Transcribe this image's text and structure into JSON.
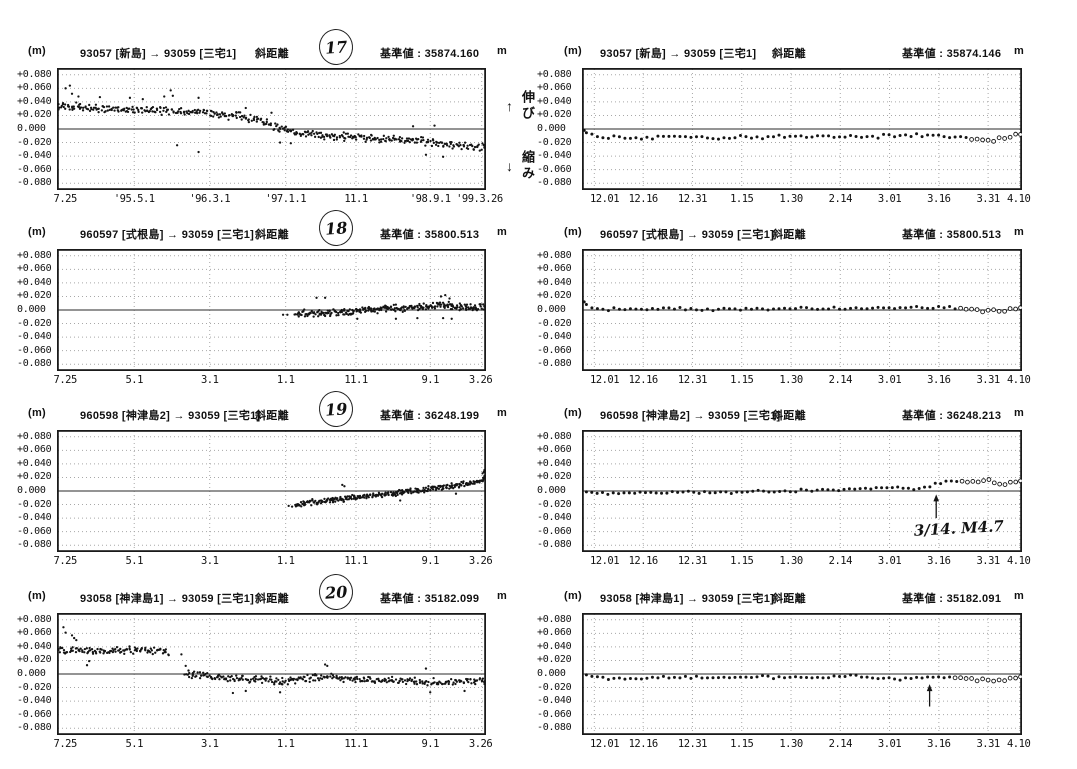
{
  "page": {
    "bg": "#ffffff",
    "ink": "#141414",
    "grid": "#a8a8a8",
    "zero_line": "#555555"
  },
  "side_labels": {
    "up_arrow": "↑",
    "extend": "伸び",
    "down_arrow": "↓",
    "contract": "縮み"
  },
  "axes": {
    "y": {
      "ticks": [
        [
          "+0.080",
          0.08
        ],
        [
          "+0.060",
          0.06
        ],
        [
          "+0.040",
          0.04
        ],
        [
          "+0.020",
          0.02
        ],
        [
          "0.000",
          0.0
        ],
        [
          "-0.020",
          -0.02
        ],
        [
          "-0.040",
          -0.04
        ],
        [
          "-0.060",
          -0.06
        ],
        [
          "-0.080",
          -0.08
        ]
      ],
      "range": [
        -0.09,
        0.09
      ],
      "unit": "(m)"
    },
    "x": {
      "long1": {
        "labels": [
          "7.25",
          "'95.5.1",
          "'96.3.1",
          "'97.1.1",
          "11.1",
          "'98.9.1",
          "'99.3.26"
        ],
        "fracs": [
          0,
          0.18,
          0.356,
          0.533,
          0.697,
          0.87,
          0.99
        ]
      },
      "long": {
        "labels": [
          "7.25",
          "5.1",
          "3.1",
          "1.1",
          "11.1",
          "9.1",
          "3.26"
        ],
        "fracs": [
          0,
          0.18,
          0.356,
          0.533,
          0.697,
          0.87,
          0.99
        ]
      },
      "short": {
        "labels": [
          "12.01",
          "12.16",
          "12.31",
          "1.15",
          "1.30",
          "2.14",
          "3.01",
          "3.16",
          "3.31",
          "4.10"
        ],
        "fracs": [
          0.028,
          0.139,
          0.251,
          0.363,
          0.475,
          0.587,
          0.699,
          0.811,
          0.923,
          0.995
        ]
      }
    }
  },
  "chart_data": [
    {
      "type": "scatter",
      "id": "17-long",
      "title": {
        "unit": "(m)",
        "stations": "93057 [新島] → 93059 [三宅1]",
        "measure": "斜距離",
        "badge": "17",
        "ref_label": "基準値 :",
        "ref_value": "35874.160",
        "ref_unit": "m"
      },
      "xaxis": "long1",
      "ylim": [
        -0.09,
        0.09
      ],
      "even": false,
      "n": 430,
      "seed": 3,
      "noise": 0.007,
      "dot_r": 1.15,
      "x0": 0,
      "open_from": null,
      "gaps": [],
      "trend": [
        [
          0,
          0.034
        ],
        [
          0.04,
          0.033
        ],
        [
          0.1,
          0.031
        ],
        [
          0.16,
          0.029
        ],
        [
          0.22,
          0.028
        ],
        [
          0.28,
          0.026
        ],
        [
          0.33,
          0.024
        ],
        [
          0.38,
          0.021
        ],
        [
          0.43,
          0.019
        ],
        [
          0.47,
          0.013
        ],
        [
          0.5,
          0.006
        ],
        [
          0.53,
          -0.001
        ],
        [
          0.56,
          -0.006
        ],
        [
          0.62,
          -0.009
        ],
        [
          0.68,
          -0.012
        ],
        [
          0.74,
          -0.014
        ],
        [
          0.8,
          -0.016
        ],
        [
          0.86,
          -0.018
        ],
        [
          0.9,
          -0.021
        ],
        [
          0.94,
          -0.025
        ],
        [
          1,
          -0.027
        ]
      ],
      "outliers": [
        [
          0.02,
          0.06
        ],
        [
          0.03,
          0.064
        ],
        [
          0.035,
          0.052
        ],
        [
          0.05,
          0.048
        ],
        [
          0.1,
          0.047
        ],
        [
          0.17,
          0.046
        ],
        [
          0.2,
          0.044
        ],
        [
          0.25,
          0.048
        ],
        [
          0.265,
          0.057
        ],
        [
          0.27,
          0.049
        ],
        [
          0.33,
          0.046
        ],
        [
          0.28,
          -0.024
        ],
        [
          0.33,
          -0.034
        ],
        [
          0.44,
          0.031
        ],
        [
          0.5,
          0.024
        ],
        [
          0.52,
          -0.02
        ],
        [
          0.545,
          -0.021
        ],
        [
          0.83,
          0.004
        ],
        [
          0.88,
          0.005
        ],
        [
          0.86,
          -0.038
        ],
        [
          0.9,
          -0.041
        ]
      ],
      "annotation": null
    },
    {
      "type": "scatter",
      "id": "17-short",
      "title": {
        "unit": "(m)",
        "stations": "93057 [新島] → 93059 [三宅1]",
        "measure": "斜距離",
        "badge": null,
        "ref_label": "基準値 :",
        "ref_value": "35874.146",
        "ref_unit": "m"
      },
      "xaxis": "short",
      "ylim": [
        -0.09,
        0.09
      ],
      "even": true,
      "n": 80,
      "seed": 7,
      "noise": 0.0035,
      "dot_r": 1.5,
      "x0": 0.01,
      "open_from": 0.88,
      "gaps": [],
      "trend": [
        [
          0,
          -0.003
        ],
        [
          0.02,
          -0.008
        ],
        [
          0.06,
          -0.012
        ],
        [
          0.15,
          -0.013
        ],
        [
          0.25,
          -0.012
        ],
        [
          0.35,
          -0.013
        ],
        [
          0.45,
          -0.012
        ],
        [
          0.55,
          -0.012
        ],
        [
          0.65,
          -0.011
        ],
        [
          0.72,
          -0.009
        ],
        [
          0.78,
          -0.008
        ],
        [
          0.82,
          -0.011
        ],
        [
          0.86,
          -0.01
        ],
        [
          0.9,
          -0.015
        ],
        [
          0.93,
          -0.017
        ],
        [
          0.96,
          -0.013
        ],
        [
          0.98,
          -0.01
        ],
        [
          1,
          -0.009
        ]
      ],
      "outliers": [
        [
          0.005,
          -0.002
        ]
      ],
      "annotation": null
    },
    {
      "type": "scatter",
      "id": "18-long",
      "title": {
        "unit": "(m)",
        "stations": "960597 [式根島] → 93059 [三宅1]",
        "measure": "斜距離",
        "badge": "18",
        "ref_label": "基準値 :",
        "ref_value": "35800.513",
        "ref_unit": "m"
      },
      "xaxis": "long",
      "ylim": [
        -0.09,
        0.09
      ],
      "even": false,
      "n": 280,
      "seed": 13,
      "noise": 0.006,
      "dot_r": 1.15,
      "x0": 0.555,
      "open_from": null,
      "gaps": [],
      "trend": [
        [
          0.555,
          -0.004
        ],
        [
          0.6,
          -0.005
        ],
        [
          0.65,
          -0.004
        ],
        [
          0.7,
          -0.002
        ],
        [
          0.75,
          0.001
        ],
        [
          0.8,
          0.003
        ],
        [
          0.85,
          0.004
        ],
        [
          0.88,
          0.006
        ],
        [
          0.91,
          0.007
        ],
        [
          0.93,
          0.004
        ],
        [
          0.96,
          0.003
        ],
        [
          1,
          0.004
        ]
      ],
      "outliers": [
        [
          0.527,
          -0.007
        ],
        [
          0.537,
          -0.007
        ],
        [
          0.605,
          0.018
        ],
        [
          0.625,
          0.018
        ],
        [
          0.7,
          -0.013
        ],
        [
          0.79,
          -0.013
        ],
        [
          0.84,
          -0.012
        ],
        [
          0.895,
          0.02
        ],
        [
          0.905,
          0.022
        ],
        [
          0.915,
          0.017
        ],
        [
          0.9,
          -0.012
        ],
        [
          0.92,
          -0.013
        ]
      ],
      "annotation": null
    },
    {
      "type": "scatter",
      "id": "18-short",
      "title": {
        "unit": "(m)",
        "stations": "960597 [式根島] → 93059 [三宅1]",
        "measure": "斜距離",
        "badge": null,
        "ref_label": "基準値 :",
        "ref_value": "35800.513",
        "ref_unit": "m"
      },
      "xaxis": "short",
      "ylim": [
        -0.09,
        0.09
      ],
      "even": true,
      "n": 80,
      "seed": 17,
      "noise": 0.003,
      "dot_r": 1.5,
      "x0": 0.01,
      "open_from": 0.86,
      "gaps": [],
      "trend": [
        [
          0,
          0.01
        ],
        [
          0.02,
          0.004
        ],
        [
          0.06,
          0.001
        ],
        [
          0.15,
          0.002
        ],
        [
          0.25,
          0.001
        ],
        [
          0.35,
          0.002
        ],
        [
          0.45,
          0.002
        ],
        [
          0.55,
          0.002
        ],
        [
          0.65,
          0.003
        ],
        [
          0.75,
          0.004
        ],
        [
          0.82,
          0.003
        ],
        [
          0.88,
          0.001
        ],
        [
          0.92,
          -0.002
        ],
        [
          0.96,
          -0.001
        ],
        [
          1,
          0.003
        ]
      ],
      "outliers": [
        [
          0.005,
          0.012
        ]
      ],
      "annotation": null
    },
    {
      "type": "scatter",
      "id": "19-long",
      "title": {
        "unit": "(m)",
        "stations": "960598 [神津島2] → 93059 [三宅1]",
        "measure": "斜距離",
        "badge": "19",
        "ref_label": "基準値 :",
        "ref_value": "36248.199",
        "ref_unit": "m"
      },
      "xaxis": "long",
      "ylim": [
        -0.09,
        0.09
      ],
      "even": false,
      "n": 300,
      "seed": 23,
      "noise": 0.005,
      "dot_r": 1.15,
      "x0": 0.555,
      "open_from": null,
      "gaps": [],
      "trend": [
        [
          0.555,
          -0.02
        ],
        [
          0.58,
          -0.018
        ],
        [
          0.62,
          -0.015
        ],
        [
          0.66,
          -0.012
        ],
        [
          0.7,
          -0.009
        ],
        [
          0.74,
          -0.007
        ],
        [
          0.78,
          -0.004
        ],
        [
          0.82,
          -0.001
        ],
        [
          0.86,
          0.002
        ],
        [
          0.9,
          0.006
        ],
        [
          0.93,
          0.009
        ],
        [
          0.96,
          0.012
        ],
        [
          0.99,
          0.015
        ],
        [
          1,
          0.022
        ]
      ],
      "outliers": [
        [
          0.54,
          -0.022
        ],
        [
          0.548,
          -0.023
        ],
        [
          0.665,
          0.009
        ],
        [
          0.67,
          0.007
        ],
        [
          0.8,
          -0.014
        ],
        [
          0.93,
          -0.004
        ],
        [
          0.992,
          0.026
        ],
        [
          0.995,
          0.028
        ],
        [
          0.998,
          0.03
        ],
        [
          1.0,
          0.031
        ]
      ],
      "annotation": null
    },
    {
      "type": "scatter",
      "id": "19-short",
      "title": {
        "unit": "(m)",
        "stations": "960598 [神津島2] → 93059 [三宅1]",
        "measure": "斜距離",
        "badge": null,
        "ref_label": "基準値 :",
        "ref_value": "36248.213",
        "ref_unit": "m"
      },
      "xaxis": "short",
      "ylim": [
        -0.09,
        0.09
      ],
      "even": true,
      "n": 82,
      "seed": 29,
      "noise": 0.0025,
      "dot_r": 1.5,
      "x0": 0.01,
      "open_from": 0.86,
      "gaps": [],
      "trend": [
        [
          0,
          -0.001
        ],
        [
          0.04,
          -0.004
        ],
        [
          0.1,
          -0.003
        ],
        [
          0.2,
          -0.002
        ],
        [
          0.3,
          -0.002
        ],
        [
          0.4,
          -0.001
        ],
        [
          0.5,
          0.001
        ],
        [
          0.58,
          0.002
        ],
        [
          0.65,
          0.004
        ],
        [
          0.7,
          0.005
        ],
        [
          0.75,
          0.004
        ],
        [
          0.78,
          0.004
        ],
        [
          0.8,
          0.01
        ],
        [
          0.82,
          0.013
        ],
        [
          0.85,
          0.015
        ],
        [
          0.87,
          0.014
        ],
        [
          0.9,
          0.015
        ],
        [
          0.925,
          0.016
        ],
        [
          0.945,
          0.01
        ],
        [
          0.96,
          0.01
        ],
        [
          0.975,
          0.013
        ],
        [
          0.99,
          0.015
        ],
        [
          1,
          0.016
        ]
      ],
      "outliers": [],
      "annotation": {
        "x": 0.805,
        "y_from": -0.04,
        "y_to": -0.005,
        "text": "3/14. M4.7",
        "tx": 0.755,
        "ty": -0.066
      }
    },
    {
      "type": "scatter",
      "id": "20-long",
      "title": {
        "unit": "(m)",
        "stations": "93058 [神津島1] → 93059 [三宅1]",
        "measure": "斜距離",
        "badge": "20",
        "ref_label": "基準値 :",
        "ref_value": "35182.099",
        "ref_unit": "m"
      },
      "xaxis": "long",
      "ylim": [
        -0.09,
        0.09
      ],
      "even": false,
      "n": 430,
      "seed": 31,
      "noise": 0.0065,
      "dot_r": 1.15,
      "x0": 0,
      "open_from": null,
      "gaps": [
        [
          0.263,
          0.296
        ]
      ],
      "trend": [
        [
          0,
          0.035
        ],
        [
          0.05,
          0.034
        ],
        [
          0.1,
          0.034
        ],
        [
          0.15,
          0.035
        ],
        [
          0.2,
          0.035
        ],
        [
          0.24,
          0.034
        ],
        [
          0.26,
          0.031
        ],
        [
          0.285,
          0.015
        ],
        [
          0.3,
          0.001
        ],
        [
          0.33,
          -0.002
        ],
        [
          0.37,
          -0.005
        ],
        [
          0.42,
          -0.007
        ],
        [
          0.47,
          -0.009
        ],
        [
          0.52,
          -0.01
        ],
        [
          0.57,
          -0.008
        ],
        [
          0.61,
          -0.004
        ],
        [
          0.63,
          -0.003
        ],
        [
          0.66,
          -0.006
        ],
        [
          0.7,
          -0.008
        ],
        [
          0.75,
          -0.009
        ],
        [
          0.8,
          -0.01
        ],
        [
          0.85,
          -0.011
        ],
        [
          0.9,
          -0.012
        ],
        [
          0.95,
          -0.011
        ],
        [
          1,
          -0.01
        ]
      ],
      "outliers": [
        [
          0.015,
          0.069
        ],
        [
          0.02,
          0.061
        ],
        [
          0.035,
          0.057
        ],
        [
          0.04,
          0.053
        ],
        [
          0.045,
          0.05
        ],
        [
          0.07,
          0.013
        ],
        [
          0.075,
          0.019
        ],
        [
          0.29,
          0.029
        ],
        [
          0.3,
          0.012
        ],
        [
          0.41,
          -0.028
        ],
        [
          0.44,
          -0.025
        ],
        [
          0.52,
          -0.027
        ],
        [
          0.625,
          0.014
        ],
        [
          0.63,
          0.012
        ],
        [
          0.86,
          0.008
        ],
        [
          0.87,
          -0.027
        ],
        [
          0.95,
          -0.025
        ]
      ],
      "annotation": null
    },
    {
      "type": "scatter",
      "id": "20-short",
      "title": {
        "unit": "(m)",
        "stations": "93058 [神津島1] → 93059 [三宅1]",
        "measure": "斜距離",
        "badge": null,
        "ref_label": "基準値 :",
        "ref_value": "35182.091",
        "ref_unit": "m"
      },
      "xaxis": "short",
      "ylim": [
        -0.09,
        0.09
      ],
      "even": true,
      "n": 80,
      "seed": 37,
      "noise": 0.0025,
      "dot_r": 1.5,
      "x0": 0.01,
      "open_from": 0.84,
      "gaps": [],
      "trend": [
        [
          0,
          0.0
        ],
        [
          0.02,
          -0.003
        ],
        [
          0.05,
          -0.006
        ],
        [
          0.1,
          -0.007
        ],
        [
          0.18,
          -0.005
        ],
        [
          0.28,
          -0.005
        ],
        [
          0.38,
          -0.004
        ],
        [
          0.48,
          -0.005
        ],
        [
          0.56,
          -0.004
        ],
        [
          0.62,
          -0.003
        ],
        [
          0.66,
          -0.005
        ],
        [
          0.7,
          -0.006
        ],
        [
          0.73,
          -0.007
        ],
        [
          0.76,
          -0.004
        ],
        [
          0.8,
          -0.005
        ],
        [
          0.84,
          -0.004
        ],
        [
          0.87,
          -0.005
        ],
        [
          0.9,
          -0.008
        ],
        [
          0.93,
          -0.011
        ],
        [
          0.96,
          -0.009
        ],
        [
          0.98,
          -0.006
        ],
        [
          1,
          -0.004
        ]
      ],
      "outliers": [],
      "annotation": {
        "x": 0.79,
        "y_from": -0.048,
        "y_to": -0.015,
        "text": null
      }
    }
  ]
}
